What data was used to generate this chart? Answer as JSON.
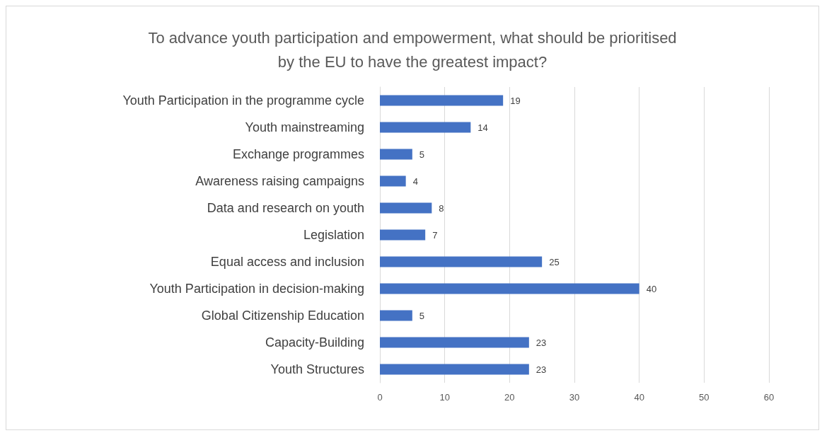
{
  "chart_data": {
    "type": "bar",
    "orientation": "horizontal",
    "title": "To advance youth participation and empowerment, what should be prioritised\nby the EU to have the greatest impact?",
    "categories": [
      "Youth Participation in the programme cycle",
      "Youth mainstreaming",
      "Exchange programmes",
      "Awareness raising campaigns",
      "Data and research on youth",
      "Legislation",
      "Equal access and inclusion",
      "Youth Participation in decision-making",
      "Global Citizenship Education",
      "Capacity-Building",
      "Youth Structures"
    ],
    "values": [
      19,
      14,
      5,
      4,
      8,
      7,
      25,
      40,
      5,
      23,
      23
    ],
    "color": "#4472c4",
    "xlim": [
      0,
      60
    ],
    "xticks": [
      0,
      10,
      20,
      30,
      40,
      50,
      60
    ],
    "grid": "x",
    "data_labels": true
  }
}
